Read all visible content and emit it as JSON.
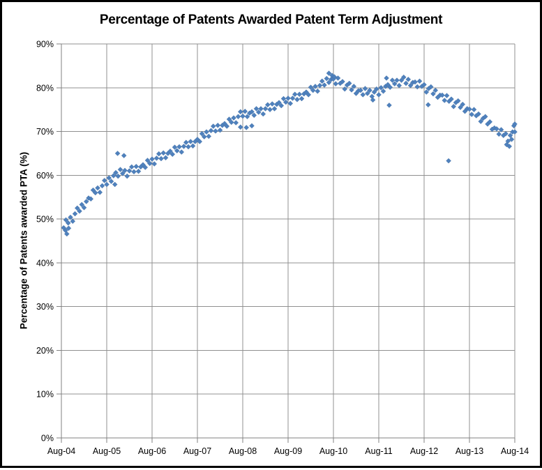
{
  "window": {
    "background_color": "#ffffff",
    "border_color": "#000000"
  },
  "chart_data": {
    "type": "scatter",
    "title": "Percentage of Patents Awarded Patent Term Adjustment",
    "xlabel": "",
    "ylabel": "Percentage of Patents awarded PTA (%)",
    "x_encoding": "years since Aug-2004",
    "xlim": [
      0,
      10
    ],
    "ylim": [
      0,
      90
    ],
    "grid": true,
    "legend_position": "none",
    "x_tick_values": [
      0,
      1,
      2,
      3,
      4,
      5,
      6,
      7,
      8,
      9,
      10
    ],
    "x_tick_labels": [
      "Aug-04",
      "Aug-05",
      "Aug-06",
      "Aug-07",
      "Aug-08",
      "Aug-09",
      "Aug-10",
      "Aug-11",
      "Aug-12",
      "Aug-13",
      "Aug-14"
    ],
    "y_tick_values": [
      0,
      10,
      20,
      30,
      40,
      50,
      60,
      70,
      80,
      90
    ],
    "y_tick_labels": [
      "0%",
      "10%",
      "20%",
      "30%",
      "40%",
      "50%",
      "60%",
      "70%",
      "80%",
      "90%"
    ],
    "style": {
      "grid_color": "#909090",
      "axis_color": "#808080",
      "text_color": "#000000",
      "title_color": "#000000"
    },
    "series": [
      {
        "name": "Percentage of patents awarded PTA",
        "marker": "diamond",
        "color": "#4F81BD",
        "edge_color": "#3E6A9E",
        "points": [
          [
            0.05,
            48.0
          ],
          [
            0.09,
            47.4
          ],
          [
            0.1,
            49.8
          ],
          [
            0.12,
            46.6
          ],
          [
            0.15,
            49.1
          ],
          [
            0.16,
            47.9
          ],
          [
            0.2,
            50.4
          ],
          [
            0.25,
            49.5
          ],
          [
            0.3,
            51.2
          ],
          [
            0.35,
            52.5
          ],
          [
            0.4,
            51.8
          ],
          [
            0.45,
            53.3
          ],
          [
            0.5,
            52.6
          ],
          [
            0.55,
            54.0
          ],
          [
            0.6,
            54.8
          ],
          [
            0.65,
            54.6
          ],
          [
            0.7,
            56.6
          ],
          [
            0.75,
            56.0
          ],
          [
            0.8,
            57.1
          ],
          [
            0.85,
            56.1
          ],
          [
            0.9,
            57.6
          ],
          [
            0.95,
            58.8
          ],
          [
            1.0,
            57.9
          ],
          [
            1.05,
            59.4
          ],
          [
            1.1,
            58.6
          ],
          [
            1.15,
            59.9
          ],
          [
            1.18,
            57.9
          ],
          [
            1.2,
            60.6
          ],
          [
            1.24,
            65.0
          ],
          [
            1.25,
            59.8
          ],
          [
            1.3,
            61.3
          ],
          [
            1.35,
            60.4
          ],
          [
            1.38,
            64.5
          ],
          [
            1.4,
            61.1
          ],
          [
            1.45,
            59.8
          ],
          [
            1.5,
            61.0
          ],
          [
            1.55,
            61.9
          ],
          [
            1.6,
            60.8
          ],
          [
            1.65,
            62.0
          ],
          [
            1.7,
            60.9
          ],
          [
            1.75,
            61.9
          ],
          [
            1.8,
            62.4
          ],
          [
            1.85,
            61.8
          ],
          [
            1.9,
            63.4
          ],
          [
            1.95,
            62.7
          ],
          [
            2.0,
            63.7
          ],
          [
            2.05,
            62.6
          ],
          [
            2.1,
            63.9
          ],
          [
            2.15,
            64.9
          ],
          [
            2.2,
            63.8
          ],
          [
            2.25,
            65.1
          ],
          [
            2.3,
            64.0
          ],
          [
            2.35,
            65.0
          ],
          [
            2.4,
            65.5
          ],
          [
            2.45,
            64.8
          ],
          [
            2.5,
            66.4
          ],
          [
            2.55,
            65.6
          ],
          [
            2.6,
            66.5
          ],
          [
            2.65,
            65.3
          ],
          [
            2.7,
            66.6
          ],
          [
            2.75,
            67.5
          ],
          [
            2.8,
            66.5
          ],
          [
            2.85,
            67.7
          ],
          [
            2.9,
            66.7
          ],
          [
            2.95,
            67.7
          ],
          [
            3.0,
            68.2
          ],
          [
            3.05,
            67.7
          ],
          [
            3.1,
            69.5
          ],
          [
            3.15,
            68.8
          ],
          [
            3.2,
            69.9
          ],
          [
            3.25,
            68.9
          ],
          [
            3.3,
            70.2
          ],
          [
            3.35,
            71.2
          ],
          [
            3.4,
            70.1
          ],
          [
            3.45,
            71.4
          ],
          [
            3.5,
            70.3
          ],
          [
            3.55,
            71.4
          ],
          [
            3.6,
            71.8
          ],
          [
            3.65,
            71.2
          ],
          [
            3.7,
            72.8
          ],
          [
            3.75,
            72.1
          ],
          [
            3.8,
            73.1
          ],
          [
            3.85,
            72.0
          ],
          [
            3.9,
            73.4
          ],
          [
            3.95,
            74.5
          ],
          [
            3.95,
            71.0
          ],
          [
            4.0,
            73.5
          ],
          [
            4.05,
            74.6
          ],
          [
            4.08,
            70.9
          ],
          [
            4.1,
            73.4
          ],
          [
            4.15,
            74.2
          ],
          [
            4.2,
            74.5
          ],
          [
            4.2,
            71.3
          ],
          [
            4.25,
            73.7
          ],
          [
            4.3,
            75.2
          ],
          [
            4.35,
            74.4
          ],
          [
            4.4,
            75.2
          ],
          [
            4.45,
            74.0
          ],
          [
            4.5,
            75.2
          ],
          [
            4.55,
            76.1
          ],
          [
            4.6,
            75.0
          ],
          [
            4.65,
            76.3
          ],
          [
            4.7,
            75.2
          ],
          [
            4.75,
            76.2
          ],
          [
            4.8,
            76.6
          ],
          [
            4.85,
            75.9
          ],
          [
            4.9,
            77.5
          ],
          [
            4.95,
            76.7
          ],
          [
            5.0,
            77.6
          ],
          [
            5.05,
            76.4
          ],
          [
            5.1,
            77.6
          ],
          [
            5.15,
            78.5
          ],
          [
            5.2,
            77.3
          ],
          [
            5.25,
            78.5
          ],
          [
            5.3,
            77.5
          ],
          [
            5.35,
            78.6
          ],
          [
            5.4,
            79.0
          ],
          [
            5.45,
            78.4
          ],
          [
            5.5,
            80.1
          ],
          [
            5.55,
            79.4
          ],
          [
            5.6,
            80.3
          ],
          [
            5.65,
            79.2
          ],
          [
            5.7,
            80.5
          ],
          [
            5.75,
            81.5
          ],
          [
            5.8,
            80.6
          ],
          [
            5.85,
            82.1
          ],
          [
            5.9,
            81.2
          ],
          [
            5.9,
            83.3
          ],
          [
            5.95,
            81.9
          ],
          [
            5.97,
            82.8
          ],
          [
            6.0,
            82.0
          ],
          [
            6.02,
            82.5
          ],
          [
            6.05,
            80.9
          ],
          [
            6.1,
            82.2
          ],
          [
            6.15,
            81.0
          ],
          [
            6.2,
            81.4
          ],
          [
            6.25,
            79.7
          ],
          [
            6.3,
            80.6
          ],
          [
            6.35,
            81.0
          ],
          [
            6.4,
            79.5
          ],
          [
            6.45,
            80.3
          ],
          [
            6.5,
            78.7
          ],
          [
            6.55,
            79.3
          ],
          [
            6.6,
            79.4
          ],
          [
            6.65,
            78.4
          ],
          [
            6.7,
            79.8
          ],
          [
            6.75,
            78.7
          ],
          [
            6.8,
            79.4
          ],
          [
            6.85,
            78.0
          ],
          [
            6.87,
            77.2
          ],
          [
            6.9,
            79.0
          ],
          [
            6.95,
            79.7
          ],
          [
            7.0,
            78.4
          ],
          [
            7.05,
            80.0
          ],
          [
            7.1,
            79.2
          ],
          [
            7.15,
            80.3
          ],
          [
            7.17,
            82.2
          ],
          [
            7.2,
            80.7
          ],
          [
            7.23,
            76.0
          ],
          [
            7.25,
            80.1
          ],
          [
            7.3,
            81.7
          ],
          [
            7.35,
            80.9
          ],
          [
            7.4,
            81.7
          ],
          [
            7.45,
            80.5
          ],
          [
            7.5,
            81.7
          ],
          [
            7.55,
            82.4
          ],
          [
            7.6,
            81.0
          ],
          [
            7.65,
            81.9
          ],
          [
            7.7,
            80.5
          ],
          [
            7.75,
            81.2
          ],
          [
            7.8,
            81.3
          ],
          [
            7.85,
            80.2
          ],
          [
            7.9,
            81.5
          ],
          [
            7.95,
            80.3
          ],
          [
            8.0,
            80.7
          ],
          [
            8.05,
            79.0
          ],
          [
            8.09,
            76.1
          ],
          [
            8.1,
            79.8
          ],
          [
            8.15,
            80.2
          ],
          [
            8.2,
            78.6
          ],
          [
            8.25,
            79.4
          ],
          [
            8.3,
            77.8
          ],
          [
            8.35,
            78.3
          ],
          [
            8.4,
            78.3
          ],
          [
            8.45,
            77.1
          ],
          [
            8.5,
            78.2
          ],
          [
            8.54,
            63.3
          ],
          [
            8.55,
            76.9
          ],
          [
            8.6,
            77.4
          ],
          [
            8.65,
            75.7
          ],
          [
            8.7,
            76.6
          ],
          [
            8.75,
            77.0
          ],
          [
            8.8,
            75.5
          ],
          [
            8.85,
            76.2
          ],
          [
            8.9,
            74.6
          ],
          [
            8.95,
            75.2
          ],
          [
            9.0,
            75.1
          ],
          [
            9.05,
            73.9
          ],
          [
            9.1,
            75.0
          ],
          [
            9.15,
            73.6
          ],
          [
            9.2,
            74.0
          ],
          [
            9.25,
            72.3
          ],
          [
            9.3,
            73.0
          ],
          [
            9.35,
            73.4
          ],
          [
            9.4,
            71.7
          ],
          [
            9.45,
            72.2
          ],
          [
            9.5,
            70.5
          ],
          [
            9.55,
            70.8
          ],
          [
            9.6,
            70.6
          ],
          [
            9.65,
            69.4
          ],
          [
            9.7,
            70.4
          ],
          [
            9.75,
            69.1
          ],
          [
            9.8,
            69.5
          ],
          [
            9.82,
            67.0
          ],
          [
            9.85,
            67.8
          ],
          [
            9.88,
            66.6
          ],
          [
            9.9,
            69.1
          ],
          [
            9.93,
            68.2
          ],
          [
            9.95,
            69.9
          ],
          [
            9.98,
            71.3
          ],
          [
            10.0,
            69.9
          ],
          [
            10.0,
            71.7
          ]
        ]
      }
    ]
  }
}
